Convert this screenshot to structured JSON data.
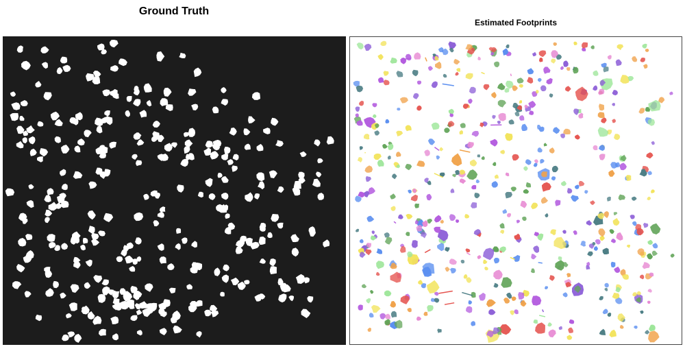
{
  "titles": {
    "left": "Ground Truth",
    "right": "Estimated Footprints"
  },
  "panels": {
    "left": {
      "background": "#1c1c1c",
      "mark_color": "#ffffff",
      "seed": 7,
      "count": 340
    },
    "right": {
      "background": "#ffffff",
      "border": "#444444",
      "seed": 19,
      "count": 520,
      "palette": [
        "#5b8ff0",
        "#b45ddf",
        "#9ee69a",
        "#f2e35a",
        "#e5544f",
        "#f0a24a",
        "#4e7f86",
        "#63a55a",
        "#e78ad3",
        "#8e61d8"
      ]
    }
  }
}
